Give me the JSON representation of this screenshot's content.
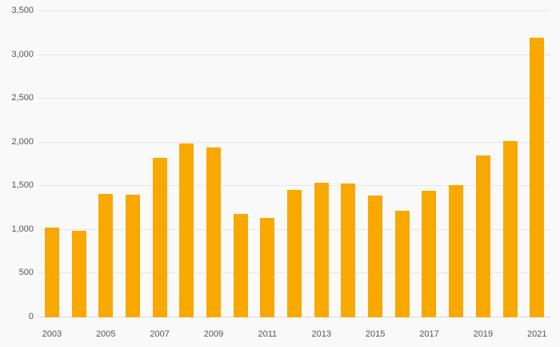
{
  "chart_data": {
    "type": "bar",
    "title": "",
    "xlabel": "",
    "ylabel": "",
    "categories": [
      "2003",
      "2004",
      "2005",
      "2006",
      "2007",
      "2008",
      "2009",
      "2010",
      "2011",
      "2012",
      "2013",
      "2014",
      "2015",
      "2016",
      "2017",
      "2018",
      "2019",
      "2020",
      "2021"
    ],
    "values": [
      1030,
      990,
      1410,
      1400,
      1820,
      1990,
      1940,
      1180,
      1140,
      1460,
      1540,
      1530,
      1390,
      1220,
      1450,
      1510,
      1850,
      2020,
      3200
    ],
    "ylim": [
      0,
      3500
    ],
    "yticks": [
      0,
      500,
      1000,
      1500,
      2000,
      2500,
      3000,
      3500
    ],
    "ytick_labels": [
      "0",
      "500",
      "1,000",
      "1,500",
      "2,000",
      "2,500",
      "3,000",
      "3,500"
    ],
    "x_labeled_categories": [
      "2003",
      "2005",
      "2007",
      "2009",
      "2011",
      "2013",
      "2015",
      "2017",
      "2019",
      "2021"
    ],
    "bar_color": "#f9a800",
    "grid": true,
    "legend_position": "none",
    "background_color": "#f9f9f9"
  }
}
